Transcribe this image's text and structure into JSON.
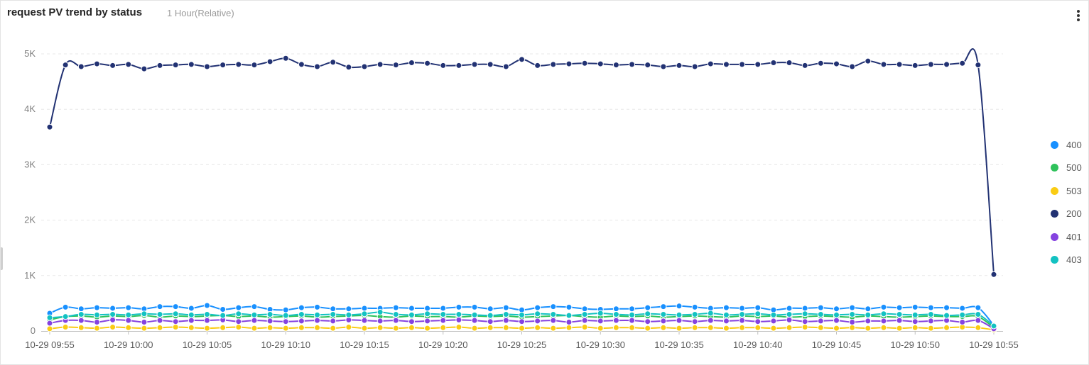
{
  "panel": {
    "title": "request PV trend by status",
    "subtitle": "1 Hour(Relative)",
    "menu_icon": "more-vertical-icon"
  },
  "chart_data": {
    "type": "line",
    "title": "request PV trend by status",
    "xlabel": "",
    "ylabel": "",
    "ylim": [
      0,
      5000
    ],
    "y_ticks": [
      "0",
      "1K",
      "2K",
      "3K",
      "4K",
      "5K"
    ],
    "x_ticks": [
      "10-29 09:55",
      "10-29 10:00",
      "10-29 10:05",
      "10-29 10:10",
      "10-29 10:15",
      "10-29 10:20",
      "10-29 10:25",
      "10-29 10:30",
      "10-29 10:35",
      "10-29 10:40",
      "10-29 10:45",
      "10-29 10:50",
      "10-29 10:55"
    ],
    "x_minutes_start": 0,
    "x_minutes_end": 60,
    "grid": true,
    "legend_position": "right",
    "series": [
      {
        "name": "400",
        "color": "#1890ff",
        "values": [
          320,
          430,
          400,
          420,
          410,
          420,
          400,
          440,
          440,
          410,
          460,
          390,
          420,
          440,
          390,
          380,
          420,
          430,
          400,
          400,
          410,
          410,
          420,
          410,
          410,
          410,
          430,
          430,
          400,
          420,
          380,
          420,
          440,
          430,
          400,
          390,
          400,
          400,
          420,
          440,
          450,
          430,
          410,
          420,
          410,
          420,
          380,
          410,
          410,
          420,
          400,
          420,
          400,
          430,
          420,
          430,
          420,
          420,
          410,
          420,
          100
        ]
      },
      {
        "name": "500",
        "color": "#2fc25b",
        "values": [
          200,
          260,
          270,
          250,
          270,
          260,
          280,
          250,
          270,
          260,
          270,
          280,
          260,
          270,
          250,
          260,
          270,
          250,
          260,
          270,
          280,
          260,
          250,
          270,
          260,
          260,
          250,
          270,
          260,
          270,
          250,
          260,
          270,
          280,
          260,
          250,
          270,
          260,
          270,
          250,
          260,
          270,
          260,
          250,
          270,
          260,
          270,
          250,
          260,
          270,
          260,
          250,
          270,
          260,
          250,
          260,
          270,
          260,
          260,
          260,
          60
        ]
      },
      {
        "name": "503",
        "color": "#facc14",
        "values": [
          40,
          70,
          60,
          50,
          70,
          60,
          50,
          60,
          70,
          60,
          50,
          60,
          70,
          50,
          60,
          50,
          60,
          60,
          50,
          70,
          50,
          60,
          50,
          60,
          50,
          60,
          70,
          50,
          60,
          60,
          50,
          60,
          50,
          60,
          70,
          50,
          60,
          60,
          50,
          60,
          50,
          60,
          60,
          50,
          60,
          60,
          50,
          60,
          70,
          60,
          50,
          60,
          50,
          60,
          50,
          60,
          50,
          60,
          70,
          60,
          20
        ]
      },
      {
        "name": "200",
        "color": "#223273",
        "values": [
          3680,
          4800,
          4770,
          4820,
          4790,
          4810,
          4730,
          4790,
          4800,
          4810,
          4770,
          4800,
          4810,
          4800,
          4860,
          4920,
          4810,
          4770,
          4850,
          4760,
          4770,
          4810,
          4800,
          4840,
          4830,
          4790,
          4790,
          4810,
          4810,
          4770,
          4900,
          4790,
          4810,
          4820,
          4830,
          4820,
          4800,
          4810,
          4800,
          4770,
          4790,
          4770,
          4820,
          4810,
          4810,
          4810,
          4840,
          4840,
          4790,
          4830,
          4820,
          4770,
          4870,
          4810,
          4810,
          4790,
          4810,
          4810,
          4830,
          4800,
          1020
        ]
      },
      {
        "name": "401",
        "color": "#8543e0",
        "values": [
          140,
          190,
          190,
          160,
          200,
          190,
          160,
          190,
          170,
          190,
          190,
          200,
          170,
          190,
          180,
          170,
          180,
          190,
          180,
          200,
          190,
          180,
          190,
          170,
          180,
          190,
          200,
          190,
          170,
          190,
          170,
          180,
          190,
          160,
          190,
          180,
          190,
          190,
          170,
          180,
          190,
          170,
          190,
          180,
          190,
          170,
          180,
          200,
          170,
          180,
          190,
          160,
          180,
          180,
          190,
          170,
          180,
          190,
          160,
          190,
          40
        ]
      },
      {
        "name": "403",
        "color": "#13c2c2",
        "values": [
          240,
          260,
          300,
          290,
          300,
          290,
          310,
          300,
          310,
          290,
          300,
          280,
          310,
          290,
          300,
          280,
          300,
          290,
          300,
          290,
          310,
          340,
          300,
          290,
          310,
          300,
          300,
          290,
          280,
          300,
          290,
          310,
          300,
          280,
          300,
          320,
          300,
          290,
          310,
          300,
          290,
          300,
          320,
          290,
          300,
          310,
          290,
          300,
          310,
          300,
          290,
          300,
          290,
          310,
          300,
          290,
          300,
          280,
          290,
          300,
          90
        ]
      }
    ]
  }
}
